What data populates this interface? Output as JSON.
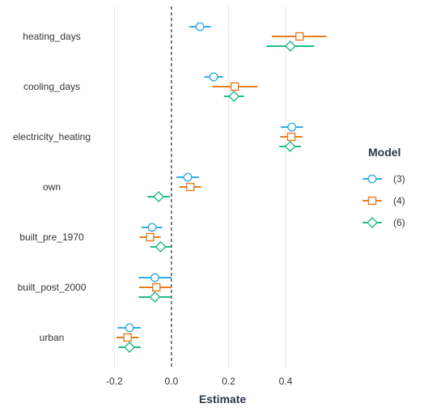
{
  "chart_data": {
    "type": "coefficient-plot",
    "xlabel": "Estimate",
    "xlim": [
      -0.255,
      0.63
    ],
    "xticks": [
      -0.2,
      0.0,
      0.2,
      0.4
    ],
    "xtick_labels": [
      "-0.2",
      "0.0",
      "0.2",
      "0.4"
    ],
    "reference_line": 0,
    "grid": "vertical",
    "categories": [
      "heating_days",
      "cooling_days",
      "electricity_heating",
      "own",
      "built_pre_1970",
      "built_post_2000",
      "urban"
    ],
    "legend": {
      "title": "Model",
      "position": "right"
    },
    "series": [
      {
        "name": "(3)",
        "color": "#35ace7",
        "marker": "circle",
        "estimates": [
          0.1,
          0.148,
          0.422,
          0.057,
          -0.068,
          -0.058,
          -0.147
        ],
        "ci_low": [
          0.063,
          0.115,
          0.383,
          0.018,
          -0.105,
          -0.115,
          -0.189
        ],
        "ci_high": [
          0.138,
          0.181,
          0.461,
          0.096,
          -0.032,
          0.0,
          -0.107
        ]
      },
      {
        "name": "(4)",
        "color": "#e87d1e",
        "marker": "square",
        "estimates": [
          0.449,
          0.222,
          0.42,
          0.066,
          -0.075,
          -0.053,
          -0.154
        ],
        "ci_low": [
          0.352,
          0.143,
          0.381,
          0.027,
          -0.112,
          -0.113,
          -0.193
        ],
        "ci_high": [
          0.543,
          0.302,
          0.459,
          0.104,
          -0.038,
          0.0,
          -0.115
        ]
      },
      {
        "name": "(6)",
        "color": "#20b98a",
        "marker": "diamond",
        "estimates": [
          0.417,
          0.219,
          0.416,
          -0.045,
          -0.038,
          -0.058,
          -0.147
        ],
        "ci_low": [
          0.333,
          0.184,
          0.378,
          -0.084,
          -0.074,
          -0.115,
          -0.186
        ],
        "ci_high": [
          0.501,
          0.254,
          0.454,
          -0.006,
          -0.002,
          0.0,
          -0.108
        ]
      }
    ]
  }
}
